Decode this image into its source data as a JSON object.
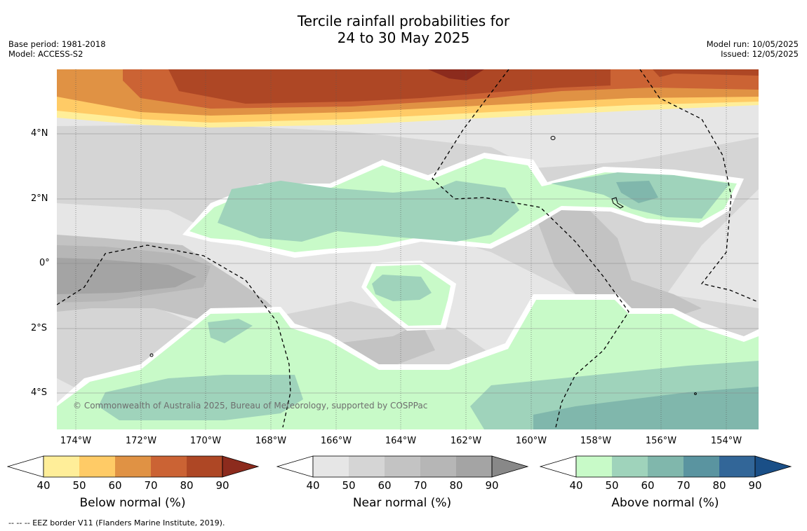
{
  "title_line1": "Tercile rainfall probabilities for",
  "title_line2": "24 to 30 May 2025",
  "base_period": "Base period: 1981-2018",
  "model": "Model: ACCESS-S2",
  "model_run": "Model run: 10/05/2025",
  "issued": "Issued: 12/05/2025",
  "map": {
    "lat_labels": [
      "4°N",
      "2°N",
      "0°",
      "2°S",
      "4°S"
    ],
    "lon_labels": [
      "174°W",
      "172°W",
      "170°W",
      "168°W",
      "166°W",
      "164°W",
      "162°W",
      "160°W",
      "158°W",
      "156°W",
      "154°W"
    ],
    "credit": "© Commonwealth of Australia 2025, Bureau of Meteorology, supported by COSPPac",
    "colors": {
      "ocean_base": "#e6e6e6",
      "below_normal": [
        "#ffee99",
        "#ffcb66",
        "#e09244",
        "#cb6334",
        "#ae4725",
        "#8c2b1d"
      ],
      "near_normal": [
        "#e6e6e6",
        "#d5d5d5",
        "#c3c3c3",
        "#b6b6b6",
        "#a4a4a4",
        "#888888"
      ],
      "above_normal": [
        "#c8fac8",
        "#9fd3bb",
        "#80b7ac",
        "#5a94a0",
        "#326698",
        "#1a4f87"
      ]
    }
  },
  "colorbars": [
    {
      "label": "Below normal (%)",
      "ticks": [
        "40",
        "50",
        "60",
        "70",
        "80",
        "90"
      ],
      "colors": [
        "#ffee99",
        "#ffcb66",
        "#e09244",
        "#cb6334",
        "#ae4725",
        "#8c2b1d"
      ]
    },
    {
      "label": "Near normal (%)",
      "ticks": [
        "40",
        "50",
        "60",
        "70",
        "80",
        "90"
      ],
      "colors": [
        "#e6e6e6",
        "#d5d5d5",
        "#c3c3c3",
        "#b6b6b6",
        "#a4a4a4",
        "#888888"
      ]
    },
    {
      "label": "Above normal (%)",
      "ticks": [
        "40",
        "50",
        "60",
        "70",
        "80",
        "90"
      ],
      "colors": [
        "#c8fac8",
        "#9fd3bb",
        "#80b7ac",
        "#5a94a0",
        "#326698",
        "#1a4f87"
      ]
    }
  ],
  "footnote": "--  --  -- EEZ border V11 (Flanders Marine Institute, 2019)."
}
